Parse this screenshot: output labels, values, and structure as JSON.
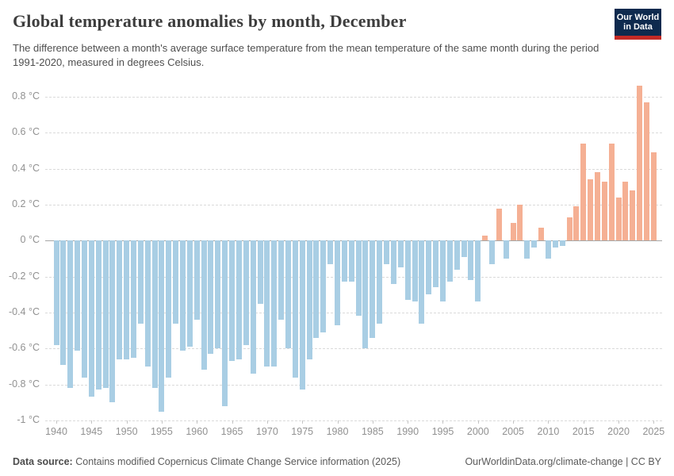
{
  "header": {
    "title": "Global temperature anomalies by month, December",
    "subtitle": "The difference between a month's average surface temperature from the mean temperature of the same month during the period 1991-2020, measured in degrees Celsius.",
    "logo": {
      "line1": "Our World",
      "line2": "in Data"
    }
  },
  "chart_data": {
    "type": "bar",
    "title": "Global temperature anomalies by month, December",
    "series_name": "December temperature anomaly",
    "unit": "°C",
    "x": [
      1940,
      1941,
      1942,
      1943,
      1944,
      1945,
      1946,
      1947,
      1948,
      1949,
      1950,
      1951,
      1952,
      1953,
      1954,
      1955,
      1956,
      1957,
      1958,
      1959,
      1960,
      1961,
      1962,
      1963,
      1964,
      1965,
      1966,
      1967,
      1968,
      1969,
      1970,
      1971,
      1972,
      1973,
      1974,
      1975,
      1976,
      1977,
      1978,
      1979,
      1980,
      1981,
      1982,
      1983,
      1984,
      1985,
      1986,
      1987,
      1988,
      1989,
      1990,
      1991,
      1992,
      1993,
      1994,
      1995,
      1996,
      1997,
      1998,
      1999,
      2000,
      2001,
      2002,
      2003,
      2004,
      2005,
      2006,
      2007,
      2008,
      2009,
      2010,
      2011,
      2012,
      2013,
      2014,
      2015,
      2016,
      2017,
      2018,
      2019,
      2020,
      2021,
      2022,
      2023,
      2024,
      2025
    ],
    "values": [
      -0.58,
      -0.69,
      -0.82,
      -0.61,
      -0.76,
      -0.87,
      -0.83,
      -0.82,
      -0.9,
      -0.66,
      -0.66,
      -0.65,
      -0.46,
      -0.7,
      -0.82,
      -0.95,
      -0.76,
      -0.46,
      -0.61,
      -0.59,
      -0.44,
      -0.72,
      -0.63,
      -0.6,
      -0.92,
      -0.67,
      -0.66,
      -0.58,
      -0.74,
      -0.35,
      -0.7,
      -0.7,
      -0.44,
      -0.6,
      -0.76,
      -0.83,
      -0.66,
      -0.54,
      -0.51,
      -0.13,
      -0.47,
      -0.23,
      -0.23,
      -0.42,
      -0.6,
      -0.54,
      -0.46,
      -0.13,
      -0.24,
      -0.15,
      -0.33,
      -0.34,
      -0.46,
      -0.3,
      -0.26,
      -0.34,
      -0.23,
      -0.16,
      -0.09,
      -0.22,
      -0.34,
      0.03,
      -0.13,
      0.18,
      -0.1,
      0.1,
      0.2,
      -0.1,
      -0.04,
      0.07,
      -0.1,
      -0.04,
      -0.03,
      0.13,
      0.19,
      0.54,
      0.34,
      0.38,
      0.33,
      0.54,
      0.24,
      0.33,
      0.28,
      0.86,
      0.77,
      0.49
    ],
    "ylim": [
      -1.0,
      0.9
    ],
    "yticks": [
      0.8,
      0.6,
      0.4,
      0.2,
      0,
      -0.2,
      -0.4,
      -0.6,
      -0.8,
      -1
    ],
    "ytick_labels": [
      "0.8 °C",
      "0.6 °C",
      "0.4 °C",
      "0.2 °C",
      "0 °C",
      "-0.2 °C",
      "-0.4 °C",
      "-0.6 °C",
      "-0.8 °C",
      "-1 °C"
    ],
    "xticks": [
      1940,
      1945,
      1950,
      1955,
      1960,
      1965,
      1970,
      1975,
      1980,
      1985,
      1990,
      1995,
      2000,
      2005,
      2010,
      2015,
      2020,
      2025
    ],
    "grid": "horizontal-dashed",
    "legend": null,
    "colors": {
      "positive": "#f5b094",
      "negative": "#a9cee4",
      "zero_line": "#a6a6a6",
      "gridline": "#dadada"
    }
  },
  "footer": {
    "source_label": "Data source:",
    "source_text": "Contains modified Copernicus Climate Change Service information (2025)",
    "credit": "OurWorldinData.org/climate-change | CC BY"
  }
}
